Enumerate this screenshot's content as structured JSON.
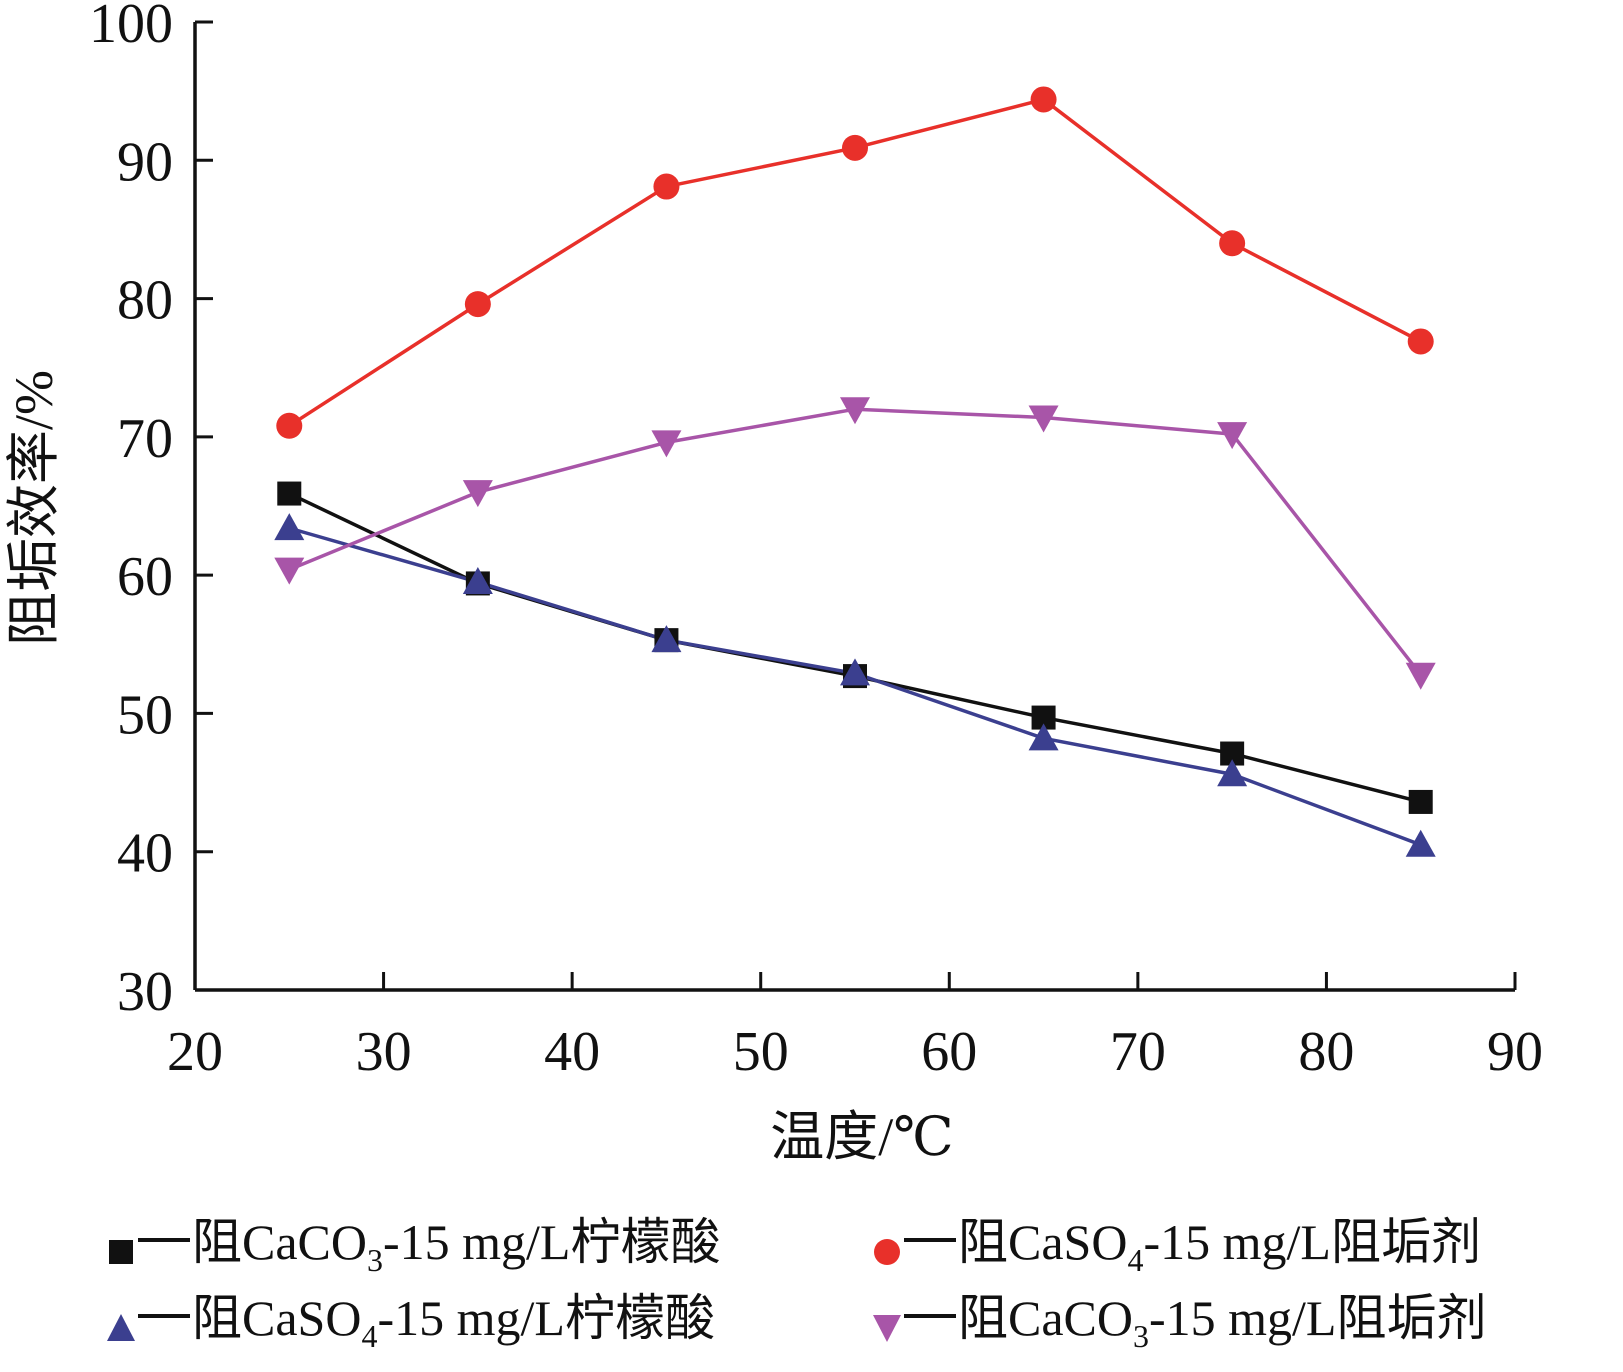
{
  "chart_data": {
    "type": "line",
    "title": "",
    "xlabel": "温度/℃",
    "ylabel": "阻垢效率/%",
    "xlim": [
      20,
      90
    ],
    "ylim": [
      30,
      100
    ],
    "x_ticks": [
      "20",
      "30",
      "40",
      "50",
      "60",
      "70",
      "80",
      "90"
    ],
    "y_ticks": [
      "30",
      "40",
      "50",
      "60",
      "70",
      "80",
      "90",
      "100"
    ],
    "x": [
      25,
      35,
      45,
      55,
      65,
      75,
      85
    ],
    "grid": false,
    "legend_position": "bottom",
    "series": [
      {
        "name": "阻CaCO3-15 mg/L柠檬酸",
        "legend_parts": [
          "阻CaCO",
          "3",
          "-15 mg/L柠檬酸"
        ],
        "marker": "square",
        "color": "#111111",
        "values": [
          65.9,
          59.4,
          55.3,
          52.7,
          49.7,
          47.1,
          43.6
        ]
      },
      {
        "name": "阻CaSO4-15 mg/L阻垢剂",
        "legend_parts": [
          "阻CaSO",
          "4",
          "-15 mg/L阻垢剂"
        ],
        "marker": "circle",
        "color": "#e8302a",
        "values": [
          70.8,
          79.6,
          88.1,
          90.9,
          94.4,
          84.0,
          76.9
        ]
      },
      {
        "name": "阻CaSO4-15 mg/L柠檬酸",
        "legend_parts": [
          "阻CaSO",
          "4",
          "-15 mg/L柠檬酸"
        ],
        "marker": "triangle-up",
        "color": "#3b3f8f",
        "values": [
          63.4,
          59.5,
          55.3,
          52.9,
          48.2,
          45.6,
          40.5
        ]
      },
      {
        "name": "阻CaCO3-15 mg/L阻垢剂",
        "legend_parts": [
          "阻CaCO",
          "3",
          "-15 mg/L阻垢剂"
        ],
        "marker": "triangle-down",
        "color": "#a855a8",
        "values": [
          60.4,
          66.0,
          69.6,
          72.0,
          71.4,
          70.2,
          52.8
        ]
      }
    ]
  }
}
